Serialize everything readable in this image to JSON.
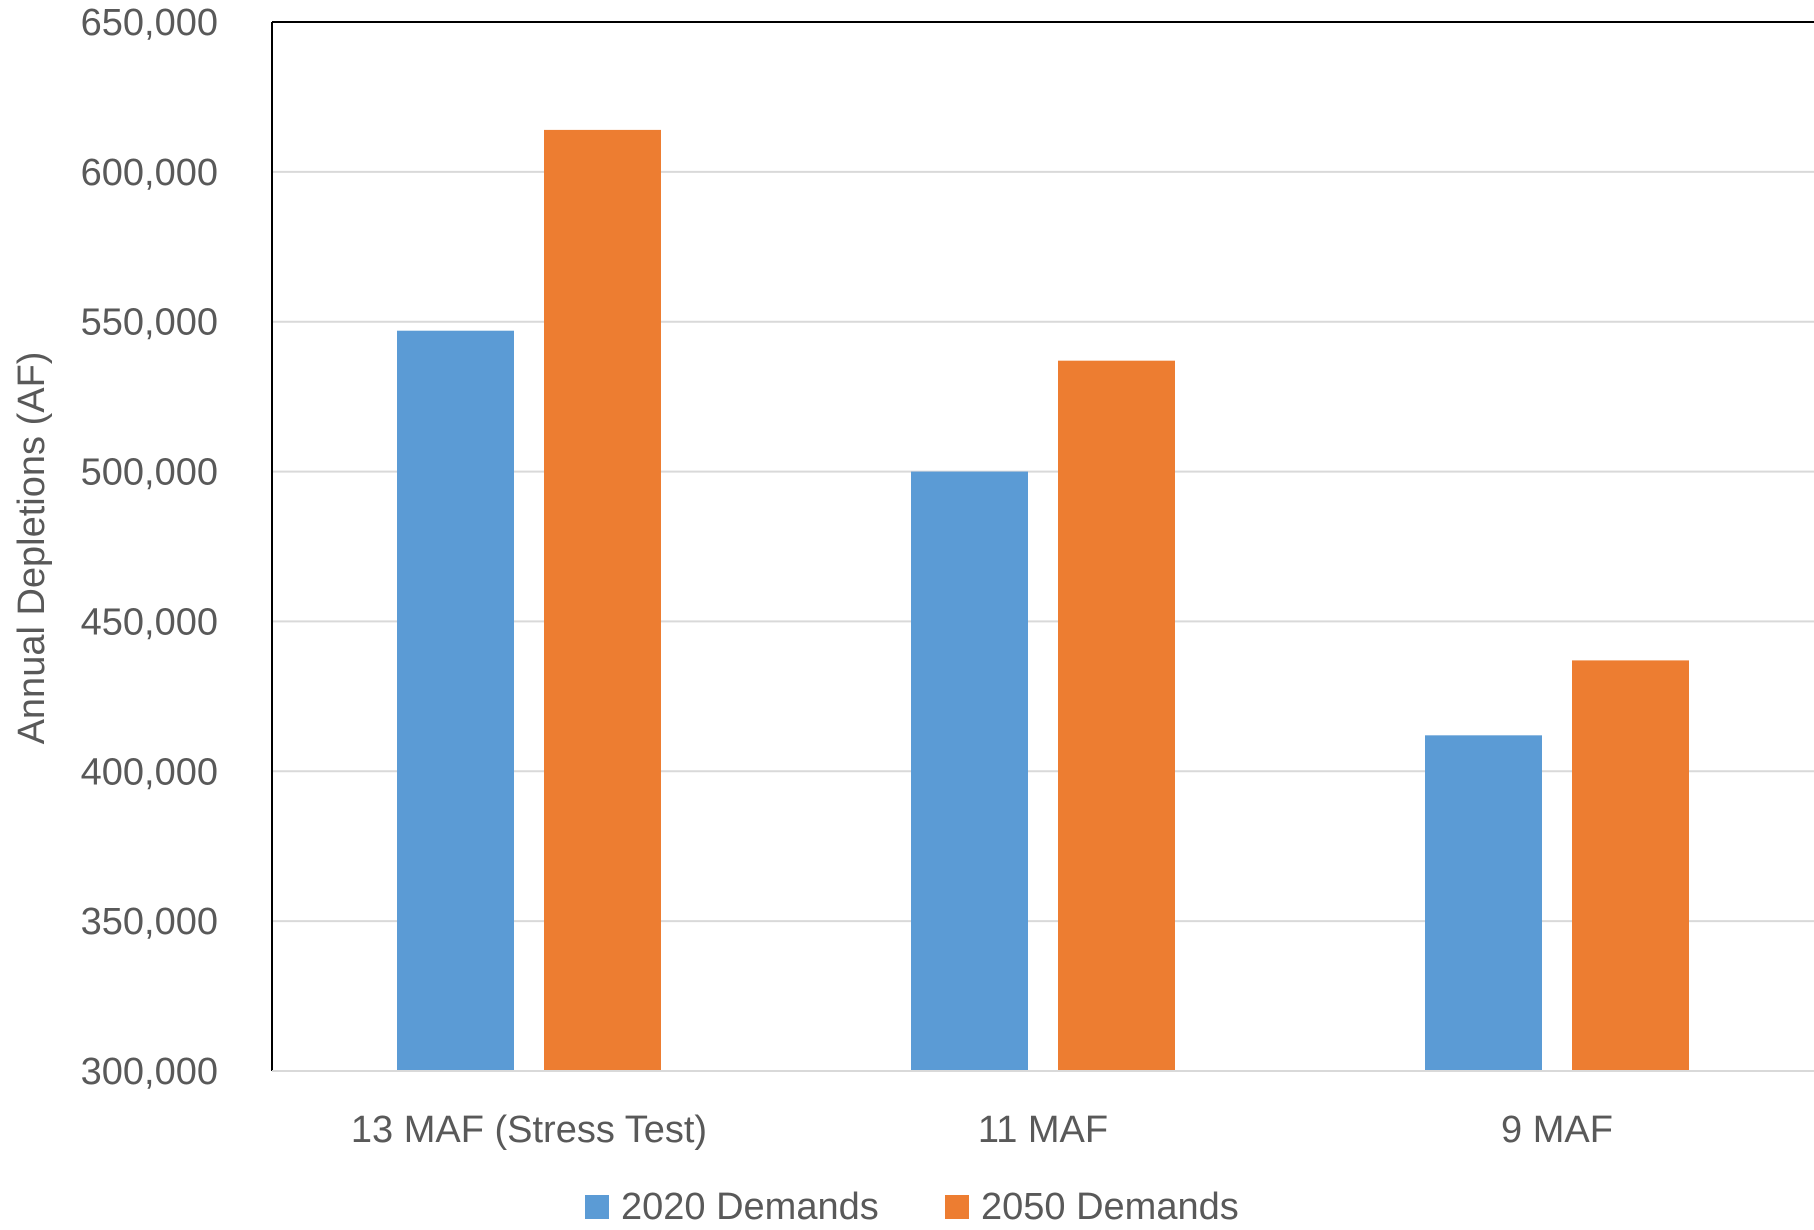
{
  "chart_data": {
    "type": "bar",
    "title": "",
    "xlabel": "",
    "ylabel": "Annual Depletions (AF)",
    "categories": [
      "13 MAF (Stress Test)",
      "11 MAF",
      "9 MAF"
    ],
    "series": [
      {
        "name": "2020 Demands",
        "color": "#5B9BD5",
        "values": [
          547000,
          500000,
          412000
        ]
      },
      {
        "name": "2050 Demands",
        "color": "#ED7D31",
        "values": [
          614000,
          537000,
          437000
        ]
      }
    ],
    "ylim": [
      300000,
      650000
    ],
    "yticks": [
      300000,
      350000,
      400000,
      450000,
      500000,
      550000,
      600000,
      650000
    ],
    "ytick_labels": [
      "300,000",
      "350,000",
      "400,000",
      "450,000",
      "500,000",
      "550,000",
      "600,000",
      "650,000"
    ],
    "grid": true,
    "legend_position": "bottom"
  }
}
